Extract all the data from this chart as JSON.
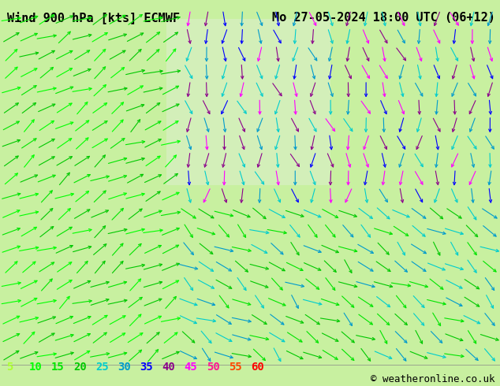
{
  "title_left": "Wind 900 hPa [kts] ECMWF",
  "title_right": "Mo 27-05-2024 18:00 UTC (06+12)",
  "copyright": "© weatheronline.co.uk",
  "legend_values": [
    5,
    10,
    15,
    20,
    25,
    30,
    35,
    40,
    45,
    50,
    55,
    60
  ],
  "legend_colors": [
    "#adff2f",
    "#00ff00",
    "#00e400",
    "#00c800",
    "#00cdcd",
    "#009acd",
    "#0000ff",
    "#8b008b",
    "#ff00ff",
    "#ff1493",
    "#ff4500",
    "#ff0000"
  ],
  "bg_color": "#c8f0a0",
  "text_color": "#000000",
  "title_font_size": 11,
  "legend_font_size": 10,
  "copyright_font_size": 9,
  "fig_width": 6.34,
  "fig_height": 4.9,
  "dpi": 100
}
